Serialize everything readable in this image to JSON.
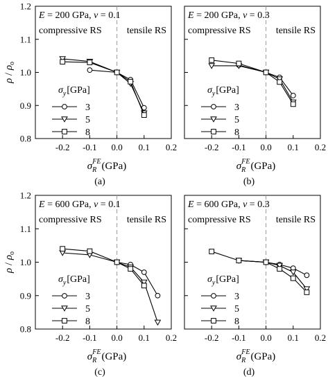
{
  "y_axis_label": "ρ / ρo",
  "y_axis_label_parts": {
    "rho": "ρ",
    "slash": "/",
    "rho0": "ρ",
    "sub": "o"
  },
  "x_axis_label_parts": {
    "sigma": "σ",
    "sub": "R",
    "sup": "FE",
    "unit": "(GPa)"
  },
  "legend_title_parts": {
    "sigma": "σ",
    "sub": "y",
    "unit": "[GPa]"
  },
  "chart_data": [
    {
      "type": "line",
      "panel_label": "(a)",
      "params_text": {
        "E_sym": "E",
        "E_val": "= 200 GPa,",
        "nu_sym": "ν",
        "nu_val": "= 0.1"
      },
      "region_left": "compressive RS",
      "region_right": "tensile RS",
      "xlim": [
        -0.3,
        0.2
      ],
      "ylim": [
        0.8,
        1.2
      ],
      "xticks": [
        "-0.2",
        "-0.1",
        "0.0",
        "0.1",
        "0.2"
      ],
      "yticks": [
        "0.8",
        "0.9",
        "1.0",
        "1.1",
        "1.2"
      ],
      "x_ticks": [
        -0.2,
        -0.1,
        0.0,
        0.1,
        0.2
      ],
      "y_ticks": [
        0.8,
        0.9,
        1.0,
        1.1,
        1.2
      ],
      "grid": false,
      "legend_position": "bottom-left",
      "series": [
        {
          "name": "3",
          "marker": "circle",
          "x": [
            -0.1,
            0.0,
            0.05,
            0.1
          ],
          "y": [
            1.007,
            1.0,
            0.978,
            0.893
          ]
        },
        {
          "name": "5",
          "marker": "triangle-down",
          "x": [
            -0.2,
            -0.1,
            0.0,
            0.05,
            0.1
          ],
          "y": [
            1.041,
            1.033,
            1.0,
            0.966,
            0.877
          ]
        },
        {
          "name": "8",
          "marker": "square",
          "x": [
            -0.2,
            -0.1,
            0.0,
            0.05,
            0.1
          ],
          "y": [
            1.032,
            1.03,
            1.0,
            0.972,
            0.871
          ]
        }
      ]
    },
    {
      "type": "line",
      "panel_label": "(b)",
      "params_text": {
        "E_sym": "E",
        "E_val": "= 200 GPa,",
        "nu_sym": "ν",
        "nu_val": "= 0.3"
      },
      "region_left": "compressive RS",
      "region_right": "tensile RS",
      "xlim": [
        -0.3,
        0.2
      ],
      "ylim": [
        0.8,
        1.2
      ],
      "xticks": [
        "-0.2",
        "-0.1",
        "0.0",
        "0.1",
        "0.2"
      ],
      "yticks": [
        "0.8",
        "0.9",
        "1.0",
        "1.1",
        "1.2"
      ],
      "x_ticks": [
        -0.2,
        -0.1,
        0.0,
        0.1,
        0.2
      ],
      "y_ticks": [
        0.8,
        0.9,
        1.0,
        1.1,
        1.2
      ],
      "grid": false,
      "legend_position": "bottom-left",
      "series": [
        {
          "name": "3",
          "marker": "circle",
          "x": [
            -0.1,
            0.0,
            0.05,
            0.1
          ],
          "y": [
            1.022,
            1.0,
            0.985,
            0.93
          ]
        },
        {
          "name": "5",
          "marker": "triangle-down",
          "x": [
            -0.2,
            -0.1,
            0.0,
            0.05,
            0.1
          ],
          "y": [
            1.02,
            1.02,
            1.0,
            0.98,
            0.91
          ]
        },
        {
          "name": "8",
          "marker": "square",
          "x": [
            -0.2,
            -0.1,
            0.0,
            0.05,
            0.1
          ],
          "y": [
            1.037,
            1.027,
            1.0,
            0.971,
            0.904
          ]
        }
      ]
    },
    {
      "type": "line",
      "panel_label": "(c)",
      "params_text": {
        "E_sym": "E",
        "E_val": "= 600 GPa,",
        "nu_sym": "ν",
        "nu_val": "= 0.1"
      },
      "region_left": "compressive RS",
      "region_right": "tensile RS",
      "xlim": [
        -0.3,
        0.2
      ],
      "ylim": [
        0.8,
        1.2
      ],
      "xticks": [
        "-0.2",
        "-0.1",
        "0.0",
        "0.1",
        "0.2"
      ],
      "yticks": [
        "0.8",
        "0.9",
        "1.0",
        "1.1",
        "1.2"
      ],
      "x_ticks": [
        -0.2,
        -0.1,
        0.0,
        0.1,
        0.2
      ],
      "y_ticks": [
        0.8,
        0.9,
        1.0,
        1.1,
        1.2
      ],
      "grid": false,
      "legend_position": "bottom-left",
      "series": [
        {
          "name": "3",
          "marker": "circle",
          "x": [
            0.0,
            0.05,
            0.1,
            0.15
          ],
          "y": [
            1.0,
            0.993,
            0.97,
            0.9
          ]
        },
        {
          "name": "5",
          "marker": "triangle-down",
          "x": [
            -0.2,
            -0.1,
            0.0,
            0.05,
            0.1,
            0.15
          ],
          "y": [
            1.028,
            1.022,
            1.0,
            0.985,
            0.94,
            0.82
          ]
        },
        {
          "name": "8",
          "marker": "square",
          "x": [
            -0.2,
            -0.1,
            0.0,
            0.05,
            0.1
          ],
          "y": [
            1.04,
            1.033,
            1.0,
            0.98,
            0.93
          ]
        }
      ]
    },
    {
      "type": "line",
      "panel_label": "(d)",
      "params_text": {
        "E_sym": "E",
        "E_val": "= 600 GPa,",
        "nu_sym": "ν",
        "nu_val": "= 0.3"
      },
      "region_left": "compressive RS",
      "region_right": "tensile RS",
      "xlim": [
        -0.3,
        0.2
      ],
      "ylim": [
        0.8,
        1.2
      ],
      "xticks": [
        "-0.2",
        "-0.1",
        "0.0",
        "0.1",
        "0.2"
      ],
      "yticks": [
        "0.8",
        "0.9",
        "1.0",
        "1.1",
        "1.2"
      ],
      "x_ticks": [
        -0.2,
        -0.1,
        0.0,
        0.1,
        0.2
      ],
      "y_ticks": [
        0.8,
        0.9,
        1.0,
        1.1,
        1.2
      ],
      "grid": false,
      "legend_position": "bottom-left",
      "series": [
        {
          "name": "3",
          "marker": "circle",
          "x": [
            -0.1,
            0.0,
            0.05,
            0.1,
            0.15
          ],
          "y": [
            1.005,
            1.0,
            0.993,
            0.982,
            0.961
          ]
        },
        {
          "name": "5",
          "marker": "triangle-down",
          "x": [
            -0.1,
            0.0,
            0.05,
            0.1,
            0.15
          ],
          "y": [
            1.005,
            1.0,
            0.99,
            0.97,
            0.92
          ]
        },
        {
          "name": "8",
          "marker": "square",
          "x": [
            -0.2,
            -0.1,
            0.0,
            0.05,
            0.1,
            0.15
          ],
          "y": [
            1.032,
            1.005,
            1.0,
            0.98,
            0.952,
            0.91
          ]
        }
      ]
    }
  ]
}
